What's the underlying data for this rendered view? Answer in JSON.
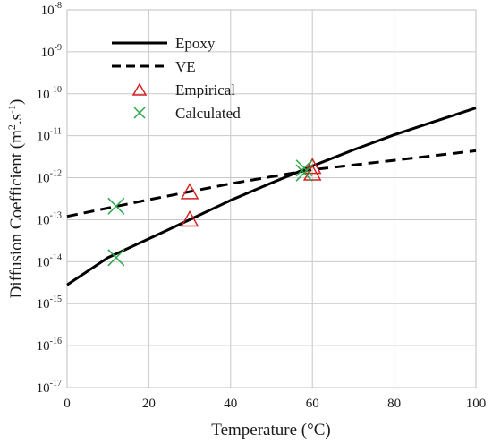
{
  "chart_data": {
    "type": "scatter",
    "xlabel": "Temperature (°C)",
    "ylabel_parts": {
      "prefix": "Diffusion Coefficient (m",
      "sup1": "2",
      "mid": ".s",
      "sup2": "-1",
      "suffix": ")"
    },
    "xlim": [
      0,
      100
    ],
    "ylim_exp": [
      -17,
      -8
    ],
    "y_scale": "log",
    "grid": true,
    "legend_position": "top-left",
    "x_ticks": [
      0,
      20,
      40,
      60,
      80,
      100
    ],
    "y_tick_exponents": [
      -8,
      -9,
      -10,
      -11,
      -12,
      -13,
      -14,
      -15,
      -16,
      -17
    ],
    "y_tick_base": "10",
    "series": [
      {
        "name": "Epoxy",
        "style": "solid-line",
        "color": "#000000",
        "x": [
          0,
          10,
          20,
          30,
          40,
          50,
          60,
          70,
          80,
          90,
          100
        ],
        "y": [
          2.8e-15,
          1.25e-14,
          3.5e-14,
          1e-13,
          2.9e-13,
          7.5e-13,
          1.9e-12,
          4.6e-12,
          1.05e-11,
          2.2e-11,
          4.6e-11
        ]
      },
      {
        "name": "VE",
        "style": "dashed-line",
        "color": "#000000",
        "x": [
          0,
          20,
          40,
          60,
          80,
          100
        ],
        "y": [
          1.2e-13,
          3e-13,
          7.2e-13,
          1.55e-12,
          2.6e-12,
          4.4e-12
        ]
      },
      {
        "name": "Empirical",
        "style": "triangle-marker",
        "color": "#d62020",
        "x": [
          30,
          30,
          60,
          60
        ],
        "y": [
          4.5e-13,
          1e-13,
          1.8e-12,
          1.25e-12
        ]
      },
      {
        "name": "Calculated",
        "style": "x-marker",
        "color": "#2aa84a",
        "x": [
          12,
          12,
          58,
          58
        ],
        "y": [
          2.1e-13,
          1.25e-14,
          1.7e-12,
          1.3e-12
        ]
      }
    ]
  }
}
